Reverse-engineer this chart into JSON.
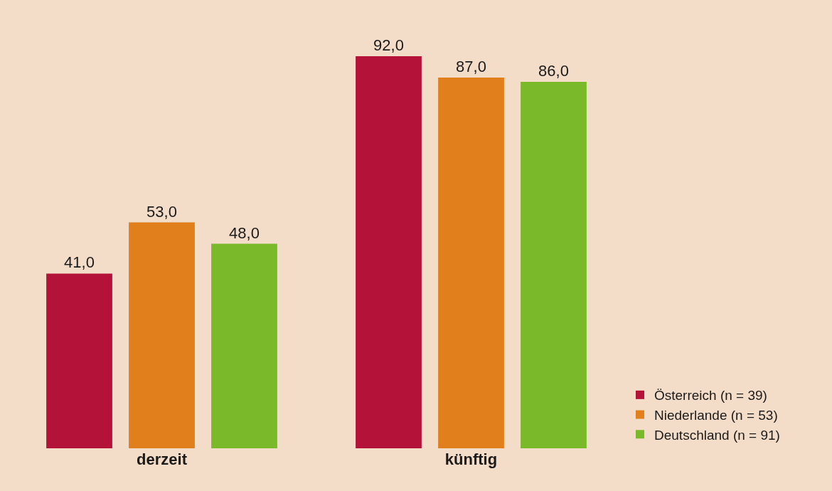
{
  "chart_data": {
    "type": "bar",
    "categories": [
      "derzeit",
      "künftig"
    ],
    "series": [
      {
        "name": "Österreich (n = 39)",
        "color": "#b5123a",
        "values": [
          41.0,
          92.0
        ],
        "value_labels": [
          "41,0",
          "92,0"
        ]
      },
      {
        "name": "Niederlande (n = 53)",
        "color": "#e07f1c",
        "values": [
          53.0,
          87.0
        ],
        "value_labels": [
          "53,0",
          "87,0"
        ]
      },
      {
        "name": "Deutschland (n = 91)",
        "color": "#7ab929",
        "values": [
          48.0,
          86.0
        ],
        "value_labels": [
          "48,0",
          "86,0"
        ]
      }
    ],
    "tick_labels": "x",
    "grid": false,
    "legend": "bottom right"
  }
}
